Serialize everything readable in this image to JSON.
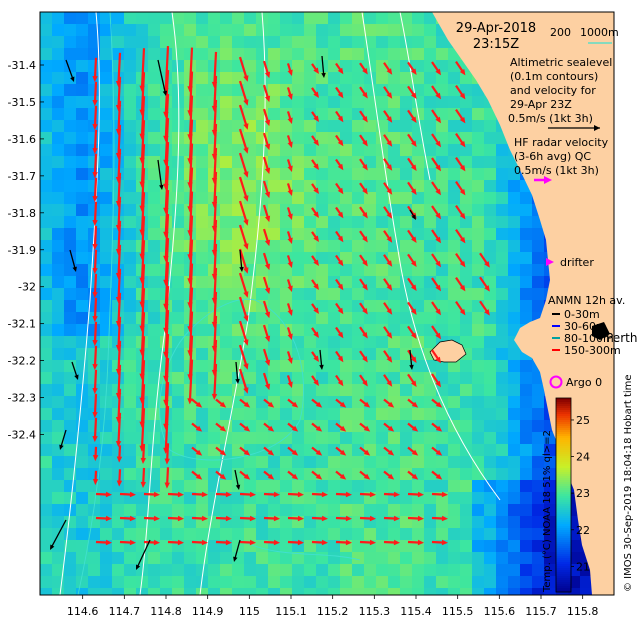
{
  "title": {
    "date": "29-Apr-2018",
    "time": "23:15Z"
  },
  "bathymetry_legend": {
    "values": [
      "200",
      "1000m"
    ]
  },
  "legend": {
    "altimetric": [
      "Altimetric sealevel",
      "(0.1m contours)",
      "and velocity for",
      "29-Apr 23Z",
      "0.5m/s (1kt 3h)"
    ],
    "hf_radar": [
      "HF radar velocity",
      "(3-6h avg) QC",
      "0.5m/s (1kt 3h)"
    ],
    "drifter": "drifter",
    "anmn": {
      "title": "ANMN 12h av.",
      "items": [
        {
          "label": "0-30m",
          "color": "#000000"
        },
        {
          "label": "30-60m",
          "color": "#0000ff"
        },
        {
          "label": "80-100m",
          "color": "#00a0a0"
        },
        {
          "label": "150-300m",
          "color": "#ff0000"
        }
      ]
    },
    "argo": "Argo 0"
  },
  "place_label": "Perth",
  "y_ticks": [
    "-31.4",
    "-31.5",
    "-31.6",
    "-31.7",
    "-31.8",
    "-31.9",
    "-32",
    "-32.1",
    "-32.2",
    "-32.3",
    "-32.4"
  ],
  "x_ticks": [
    "114.6",
    "114.7",
    "114.8",
    "114.9",
    "115",
    "115.1",
    "115.2",
    "115.3",
    "115.4",
    "115.5",
    "115.6",
    "115.7",
    "115.8"
  ],
  "colorbar": {
    "ticks": [
      "25",
      "24",
      "23",
      "22",
      "21"
    ],
    "range": [
      20.3,
      25.6
    ],
    "caption": "Temp. (°C) NOAA 18 51% ql>=2"
  },
  "credit": "© IMOS 30-Sep-2019 18:04:18 Hobart time",
  "colors": {
    "land": "#fdd0a2",
    "hf_vector": "#ff1a1a",
    "altimetry_vector": "#000000",
    "drifter": "#ff00ff",
    "contour": "#ffffff",
    "bathymetry": "#40e0d0"
  }
}
